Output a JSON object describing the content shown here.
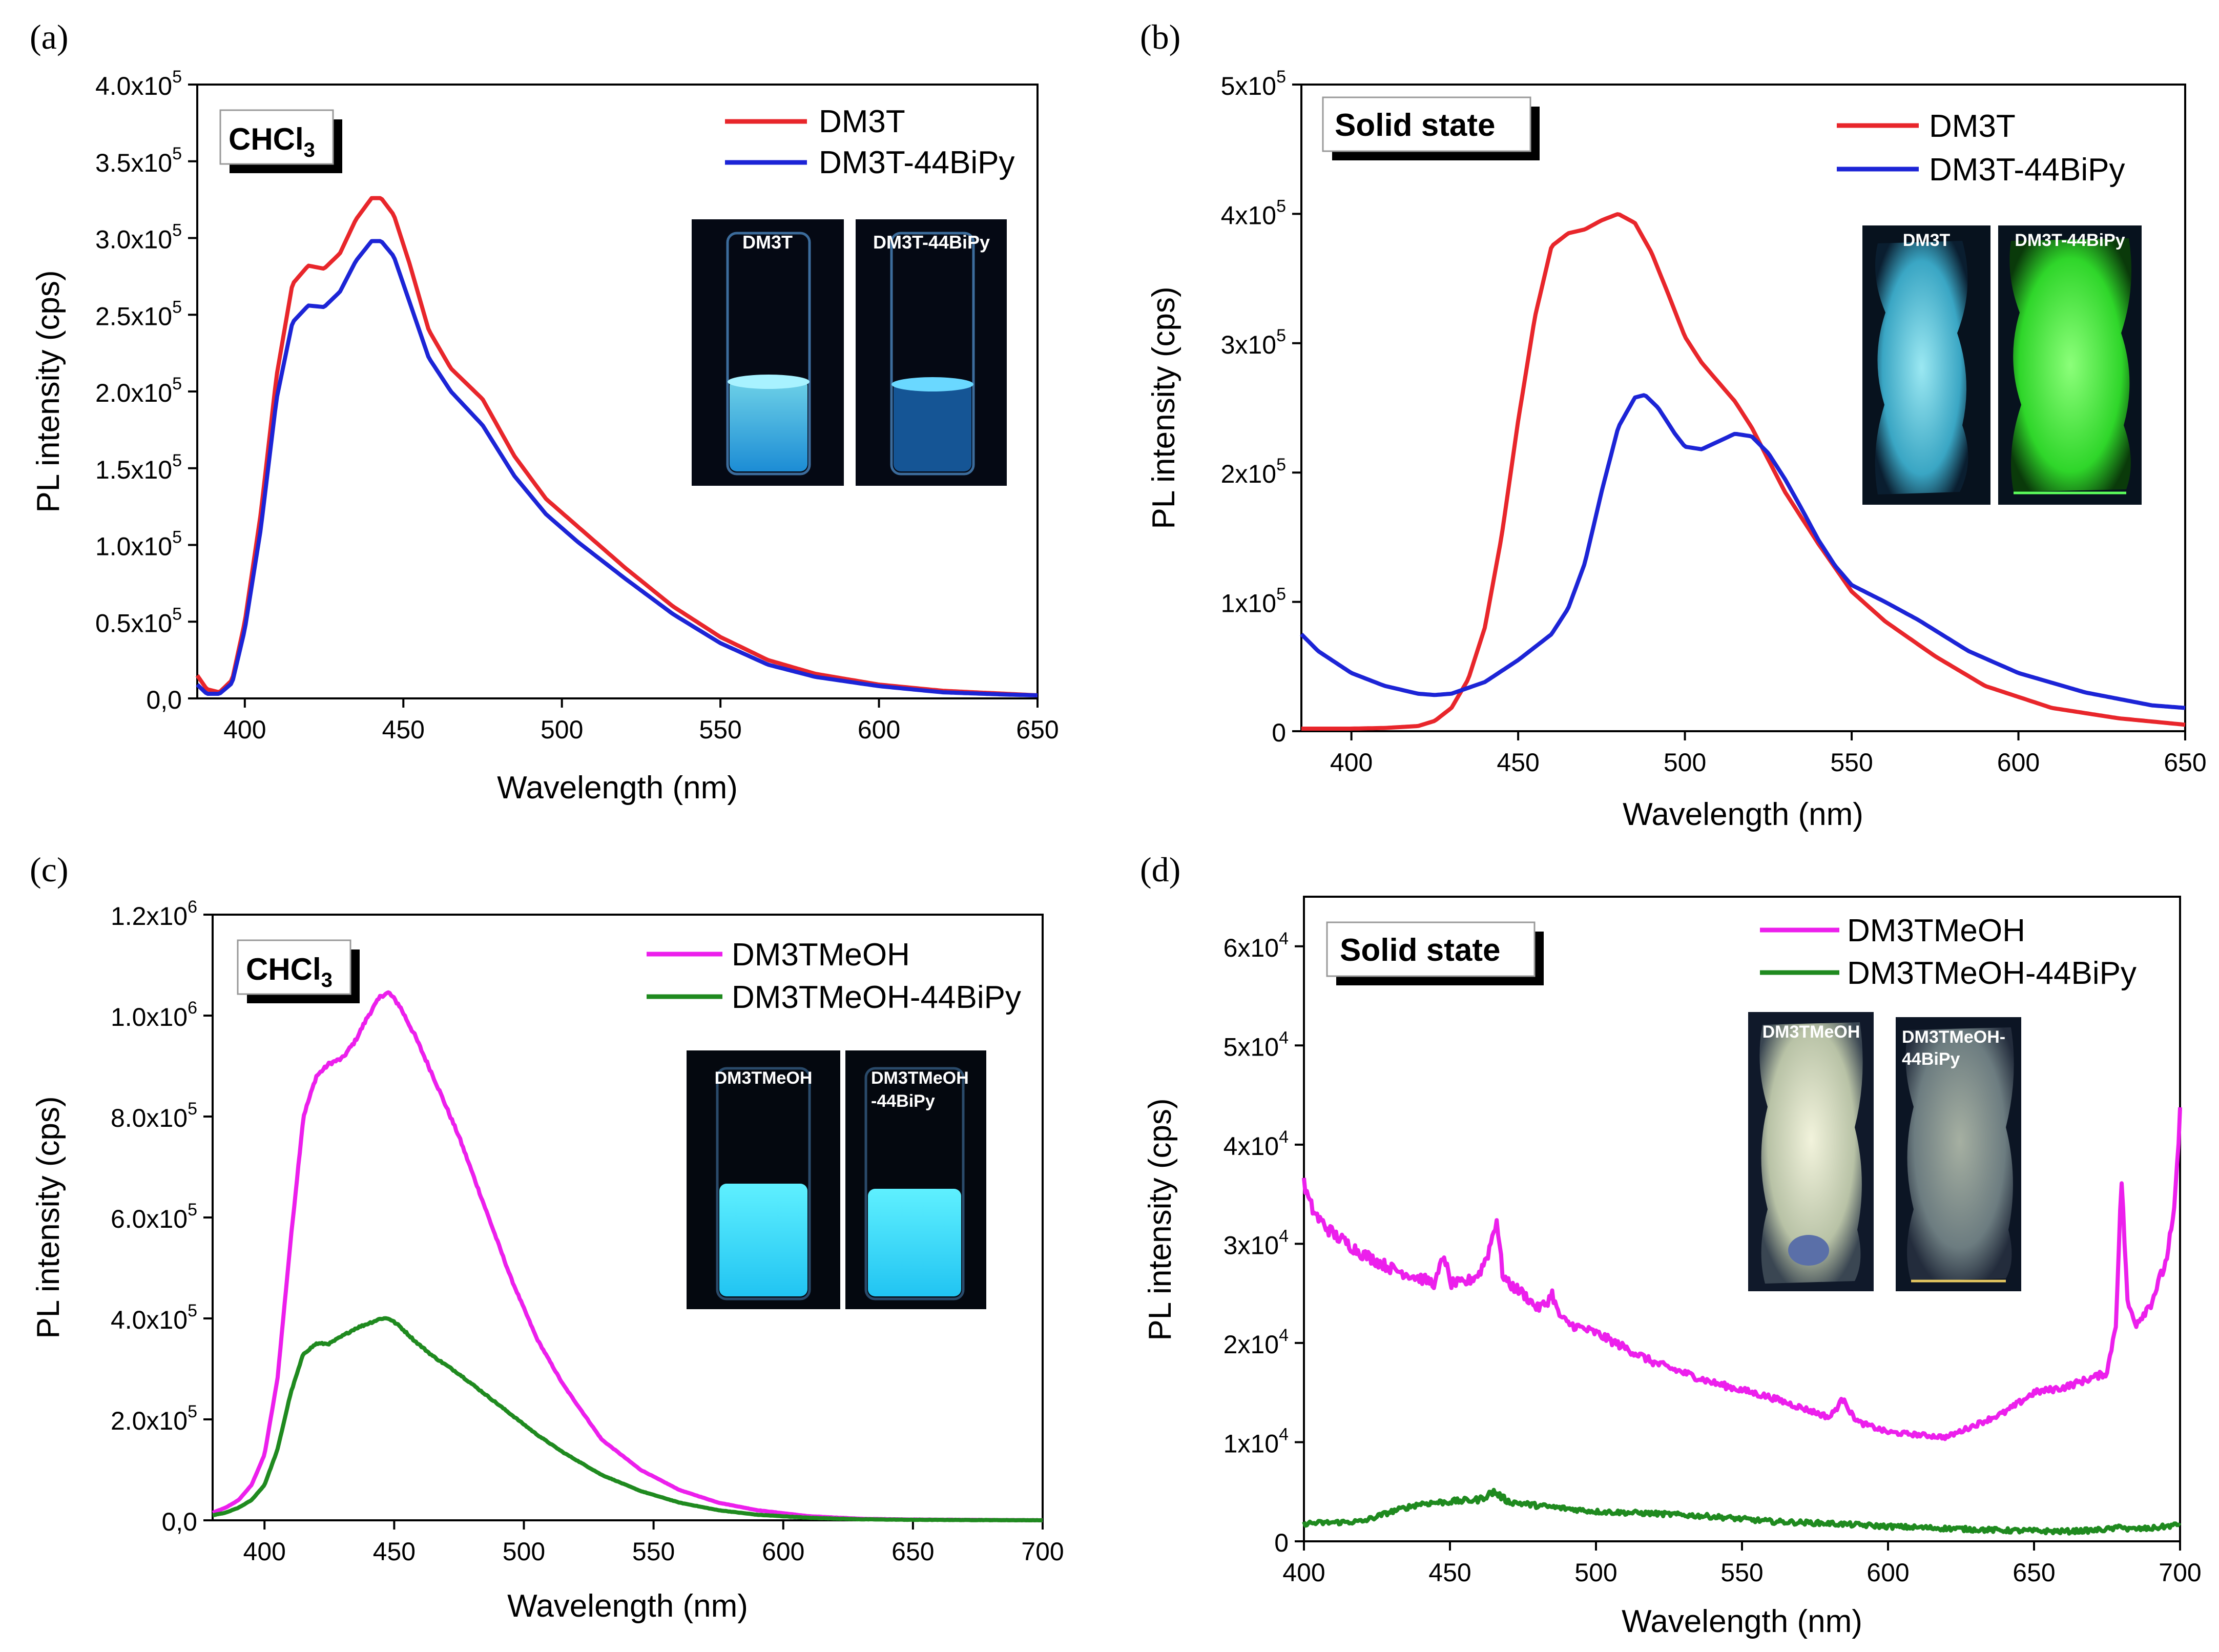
{
  "figure": {
    "panel_labels": [
      "(a)",
      "(b)",
      "(c)",
      "(d)"
    ]
  },
  "chart_data": [
    {
      "type": "line",
      "panel": "(a)",
      "box_label": "CHCl3",
      "box_label_main": "CHCl",
      "box_label_sub": "3",
      "xlabel": "Wavelength (nm)",
      "ylabel": "PL intensity (cps)",
      "xlim": [
        385,
        650
      ],
      "ylim": [
        0,
        400000
      ],
      "xticks": [
        400,
        450,
        500,
        550,
        600,
        650
      ],
      "xtick_labels": [
        "400",
        "450",
        "500",
        "550",
        "600",
        "650"
      ],
      "yticks": [
        0,
        50000,
        100000,
        150000,
        200000,
        250000,
        300000,
        350000,
        400000
      ],
      "ytick_labels": [
        {
          "main": "0,0",
          "exp": ""
        },
        {
          "main": "0.5x10",
          "exp": "5"
        },
        {
          "main": "1.0x10",
          "exp": "5"
        },
        {
          "main": "1.5x10",
          "exp": "5"
        },
        {
          "main": "2.0x10",
          "exp": "5"
        },
        {
          "main": "2.5x10",
          "exp": "5"
        },
        {
          "main": "3.0x10",
          "exp": "5"
        },
        {
          "main": "3.5x10",
          "exp": "5"
        },
        {
          "main": "4.0x10",
          "exp": "5"
        }
      ],
      "legend_position": "top-right",
      "inset_labels": [
        "DM3T",
        "DM3T-44BiPy"
      ],
      "series": [
        {
          "name": "DM3T",
          "color": "#e8262b",
          "noise": 0,
          "x": [
            385,
            388,
            392,
            396,
            400,
            405,
            410,
            415,
            420,
            425,
            430,
            435,
            440,
            443,
            447,
            452,
            458,
            465,
            475,
            485,
            495,
            505,
            520,
            535,
            550,
            565,
            580,
            600,
            620,
            640,
            650
          ],
          "y": [
            15000,
            6000,
            4000,
            12000,
            50000,
            120000,
            210000,
            270000,
            282000,
            280000,
            290000,
            312000,
            326000,
            326000,
            315000,
            283000,
            240000,
            215000,
            195000,
            158000,
            130000,
            112000,
            85000,
            60000,
            40000,
            25000,
            16000,
            9000,
            5000,
            3000,
            2000
          ]
        },
        {
          "name": "DM3T-44BiPy",
          "color": "#1c24d6",
          "noise": 0,
          "x": [
            385,
            388,
            392,
            396,
            400,
            405,
            410,
            415,
            420,
            425,
            430,
            435,
            440,
            443,
            447,
            452,
            458,
            465,
            475,
            485,
            495,
            505,
            520,
            535,
            550,
            565,
            580,
            600,
            620,
            640,
            650
          ],
          "y": [
            9000,
            3000,
            3000,
            10000,
            45000,
            110000,
            195000,
            245000,
            256000,
            255000,
            265000,
            285000,
            298000,
            298000,
            288000,
            258000,
            222000,
            200000,
            178000,
            145000,
            120000,
            102000,
            78000,
            55000,
            36000,
            22000,
            14000,
            8000,
            4000,
            2500,
            2000
          ]
        }
      ]
    },
    {
      "type": "line",
      "panel": "(b)",
      "box_label": "Solid state",
      "xlabel": "Wavelength (nm)",
      "ylabel": "PL intensity (cps)",
      "xlim": [
        385,
        650
      ],
      "ylim": [
        0,
        500000
      ],
      "xticks": [
        400,
        450,
        500,
        550,
        600,
        650
      ],
      "xtick_labels": [
        "400",
        "450",
        "500",
        "550",
        "600",
        "650"
      ],
      "yticks": [
        0,
        100000,
        200000,
        300000,
        400000,
        500000
      ],
      "ytick_labels": [
        {
          "main": "0",
          "exp": ""
        },
        {
          "main": "1x10",
          "exp": "5"
        },
        {
          "main": "2x10",
          "exp": "5"
        },
        {
          "main": "3x10",
          "exp": "5"
        },
        {
          "main": "4x10",
          "exp": "5"
        },
        {
          "main": "5x10",
          "exp": "5"
        }
      ],
      "legend_position": "top-right",
      "inset_labels": [
        "DM3T",
        "DM3T-44BiPy"
      ],
      "series": [
        {
          "name": "DM3T",
          "color": "#e8262b",
          "noise": 0,
          "x": [
            385,
            400,
            410,
            420,
            425,
            430,
            435,
            440,
            445,
            450,
            455,
            460,
            465,
            470,
            475,
            480,
            485,
            490,
            495,
            500,
            505,
            510,
            515,
            520,
            525,
            530,
            540,
            550,
            560,
            575,
            590,
            610,
            630,
            650
          ],
          "y": [
            2000,
            2000,
            2500,
            4000,
            8000,
            18000,
            40000,
            80000,
            150000,
            240000,
            320000,
            375000,
            385000,
            388000,
            395000,
            400000,
            393000,
            370000,
            338000,
            305000,
            285000,
            270000,
            255000,
            235000,
            210000,
            185000,
            145000,
            108000,
            85000,
            58000,
            35000,
            18000,
            10000,
            5000
          ]
        },
        {
          "name": "DM3T-44BiPy",
          "color": "#1c24d6",
          "noise": 0,
          "x": [
            385,
            390,
            400,
            410,
            420,
            425,
            430,
            440,
            450,
            460,
            465,
            470,
            475,
            480,
            485,
            488,
            492,
            497,
            500,
            505,
            510,
            515,
            520,
            525,
            530,
            535,
            540,
            545,
            550,
            560,
            570,
            585,
            600,
            620,
            640,
            650
          ],
          "y": [
            75000,
            62000,
            45000,
            35000,
            29000,
            28000,
            29000,
            38000,
            55000,
            75000,
            95000,
            130000,
            185000,
            235000,
            258000,
            260000,
            250000,
            230000,
            220000,
            218000,
            224000,
            230000,
            228000,
            215000,
            195000,
            172000,
            148000,
            128000,
            113000,
            100000,
            86000,
            62000,
            45000,
            30000,
            20000,
            18000
          ]
        }
      ]
    },
    {
      "type": "line",
      "panel": "(c)",
      "box_label": "CHCl3",
      "box_label_main": "CHCl",
      "box_label_sub": "3",
      "xlabel": "Wavelength (nm)",
      "ylabel": "PL intensity (cps)",
      "xlim": [
        380,
        700
      ],
      "ylim": [
        0,
        1200000
      ],
      "xticks": [
        400,
        450,
        500,
        550,
        600,
        650,
        700
      ],
      "xtick_labels": [
        "400",
        "450",
        "500",
        "550",
        "600",
        "650",
        "700"
      ],
      "yticks": [
        0,
        200000,
        400000,
        600000,
        800000,
        1000000,
        1200000
      ],
      "ytick_labels": [
        {
          "main": "0,0",
          "exp": ""
        },
        {
          "main": "2.0x10",
          "exp": "5"
        },
        {
          "main": "4.0x10",
          "exp": "5"
        },
        {
          "main": "6.0x10",
          "exp": "5"
        },
        {
          "main": "8.0x10",
          "exp": "5"
        },
        {
          "main": "1.0x10",
          "exp": "6"
        },
        {
          "main": "1.2x10",
          "exp": "6"
        }
      ],
      "legend_position": "top-right",
      "inset_labels": [
        "DM3TMeOH",
        "DM3TMeOH",
        "-44BiPy"
      ],
      "series": [
        {
          "name": "DM3TMeOH",
          "color": "#ec1fec",
          "noise": 0.006,
          "x": [
            380,
            385,
            390,
            395,
            400,
            405,
            410,
            415,
            420,
            425,
            430,
            435,
            440,
            445,
            448,
            452,
            458,
            465,
            475,
            485,
            495,
            505,
            515,
            530,
            545,
            560,
            575,
            590,
            610,
            630,
            650,
            700
          ],
          "y": [
            15000,
            25000,
            40000,
            70000,
            130000,
            280000,
            550000,
            800000,
            880000,
            905000,
            915000,
            950000,
            1000000,
            1040000,
            1045000,
            1020000,
            960000,
            880000,
            760000,
            620000,
            480000,
            360000,
            270000,
            160000,
            100000,
            60000,
            35000,
            20000,
            8000,
            3000,
            1500,
            0
          ]
        },
        {
          "name": "DM3TMeOH-44BiPy",
          "color": "#1f8a1f",
          "noise": 0.008,
          "x": [
            380,
            385,
            390,
            395,
            400,
            405,
            410,
            415,
            420,
            425,
            430,
            435,
            440,
            445,
            448,
            452,
            458,
            465,
            475,
            485,
            495,
            505,
            515,
            530,
            545,
            560,
            575,
            590,
            610,
            630,
            650,
            700
          ],
          "y": [
            10000,
            15000,
            25000,
            40000,
            70000,
            140000,
            250000,
            330000,
            350000,
            350000,
            365000,
            380000,
            390000,
            400000,
            400000,
            385000,
            355000,
            325000,
            290000,
            250000,
            210000,
            170000,
            135000,
            90000,
            58000,
            35000,
            20000,
            11000,
            5000,
            2000,
            1000,
            0
          ]
        }
      ]
    },
    {
      "type": "line",
      "panel": "(d)",
      "box_label": "Solid state",
      "xlabel": "Wavelength (nm)",
      "ylabel": "PL intensity (cps)",
      "xlim": [
        400,
        700
      ],
      "ylim": [
        0,
        65000
      ],
      "xticks": [
        400,
        450,
        500,
        550,
        600,
        650,
        700
      ],
      "xtick_labels": [
        "400",
        "450",
        "500",
        "550",
        "600",
        "650",
        "700"
      ],
      "yticks": [
        0,
        10000,
        20000,
        30000,
        40000,
        50000,
        60000
      ],
      "ytick_labels": [
        {
          "main": "0",
          "exp": ""
        },
        {
          "main": "1x10",
          "exp": "4"
        },
        {
          "main": "2x10",
          "exp": "4"
        },
        {
          "main": "3x10",
          "exp": "4"
        },
        {
          "main": "4x10",
          "exp": "4"
        },
        {
          "main": "5x10",
          "exp": "4"
        },
        {
          "main": "6x10",
          "exp": "4"
        }
      ],
      "legend_position": "top-right",
      "inset_labels": [
        "DM3TMeOH",
        "DM3TMeOH-",
        "44BiPy"
      ],
      "series": [
        {
          "name": "DM3TMeOH",
          "color": "#ec1fec",
          "noise": 0.035,
          "x": [
            400,
            402,
            405,
            410,
            415,
            420,
            430,
            440,
            445,
            448,
            450,
            455,
            460,
            463,
            466,
            468,
            470,
            475,
            480,
            483,
            485,
            487,
            490,
            500,
            520,
            540,
            560,
            575,
            580,
            585,
            587,
            590,
            600,
            620,
            640,
            650,
            660,
            670,
            675,
            678,
            680,
            682,
            685,
            690,
            695,
            698,
            700
          ],
          "y": [
            36000,
            34000,
            32500,
            31000,
            30000,
            29000,
            27500,
            26500,
            26000,
            29000,
            26000,
            26000,
            27000,
            29000,
            32500,
            27000,
            26000,
            25000,
            23500,
            24000,
            25000,
            23000,
            22000,
            21000,
            18000,
            16000,
            14500,
            13000,
            12500,
            14500,
            13000,
            12000,
            11000,
            10500,
            13000,
            15000,
            15500,
            16500,
            17000,
            22000,
            36500,
            24000,
            22000,
            24000,
            28000,
            33000,
            43000
          ]
        },
        {
          "name": "DM3TMeOH-44BiPy",
          "color": "#1f8a1f",
          "noise": 0.12,
          "x": [
            400,
            420,
            430,
            440,
            450,
            460,
            465,
            470,
            480,
            490,
            500,
            520,
            540,
            560,
            580,
            600,
            620,
            640,
            660,
            670,
            678,
            680,
            682,
            690,
            700
          ],
          "y": [
            1800,
            2000,
            3000,
            3800,
            4000,
            4200,
            5000,
            4000,
            3600,
            3300,
            3000,
            2800,
            2500,
            2000,
            1800,
            1500,
            1300,
            1100,
            1000,
            1100,
            1300,
            1600,
            1200,
            1300,
            1700
          ]
        }
      ]
    }
  ]
}
